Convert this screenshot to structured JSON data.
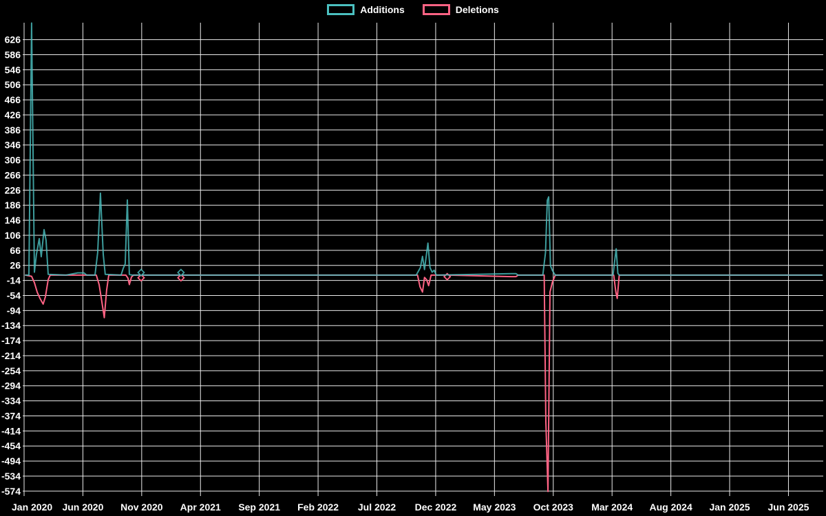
{
  "legend": {
    "position": "top",
    "items": [
      {
        "label": "Additions",
        "swatch": "teal-outline-box"
      },
      {
        "label": "Deletions",
        "swatch": "pink-outline-box"
      }
    ]
  },
  "chart_data": {
    "type": "line",
    "title": "",
    "xlabel": "",
    "ylabel": "",
    "x_unit": "months since Jan 2020",
    "xlim": [
      0,
      67.9
    ],
    "ylim": [
      -578,
      671
    ],
    "grid": true,
    "legend_position": "top",
    "colors": {
      "background": "#000000",
      "grid": "#ededed",
      "text": "#ffffff",
      "additions": "#4bc0c0",
      "deletions": "#ff6384"
    },
    "x_axis": {
      "tick_positions": [
        0,
        5,
        10,
        15,
        20,
        25,
        30,
        35,
        40,
        45,
        50,
        55,
        60,
        65
      ],
      "tick_labels": [
        "Jan 2020",
        "Jun 2020",
        "Nov 2020",
        "Apr 2021",
        "Sep 2021",
        "Feb 2022",
        "Jul 2022",
        "Dec 2022",
        "May 2023",
        "Oct 2023",
        "Mar 2024",
        "Aug 2024",
        "Jan 2025",
        "Jun 2025"
      ]
    },
    "y_axis": {
      "ticks": [
        626,
        586,
        546,
        506,
        466,
        426,
        386,
        346,
        306,
        266,
        226,
        186,
        146,
        106,
        66,
        26,
        -14,
        -54,
        -94,
        -134,
        -174,
        -214,
        -254,
        -294,
        -334,
        -374,
        -414,
        -454,
        -494,
        -534,
        -574
      ],
      "tick_step": 40
    },
    "series": [
      {
        "name": "Additions",
        "color": "#4bc0c0",
        "marker_style": "diamond",
        "points": [
          [
            0.12,
            0
          ],
          [
            0.41,
            0
          ],
          [
            0.64,
            670
          ],
          [
            0.88,
            8
          ],
          [
            1.05,
            55
          ],
          [
            1.29,
            97
          ],
          [
            1.46,
            49
          ],
          [
            1.7,
            121
          ],
          [
            1.87,
            93
          ],
          [
            2.05,
            2
          ],
          [
            3.57,
            0
          ],
          [
            4.56,
            6
          ],
          [
            5.09,
            6
          ],
          [
            5.32,
            0
          ],
          [
            6.03,
            0
          ],
          [
            6.26,
            60
          ],
          [
            6.49,
            218
          ],
          [
            6.73,
            55
          ],
          [
            6.9,
            2
          ],
          [
            8.25,
            0
          ],
          [
            8.43,
            18
          ],
          [
            8.6,
            30
          ],
          [
            8.78,
            200
          ],
          [
            8.95,
            2
          ],
          [
            9.19,
            0
          ],
          [
            9.77,
            0
          ],
          [
            9.95,
            7
          ],
          [
            10.12,
            0
          ],
          [
            13.16,
            0
          ],
          [
            13.34,
            7
          ],
          [
            13.52,
            0
          ],
          [
            33.35,
            0
          ],
          [
            33.7,
            20
          ],
          [
            33.88,
            50
          ],
          [
            34.05,
            15
          ],
          [
            34.34,
            85
          ],
          [
            34.52,
            20
          ],
          [
            34.7,
            8
          ],
          [
            34.87,
            13
          ],
          [
            35.05,
            0
          ],
          [
            41.42,
            4
          ],
          [
            41.83,
            4
          ],
          [
            42.01,
            0
          ],
          [
            44.11,
            0
          ],
          [
            44.34,
            60
          ],
          [
            44.49,
            199
          ],
          [
            44.61,
            208
          ],
          [
            44.76,
            25
          ],
          [
            44.93,
            12
          ],
          [
            45.17,
            0
          ],
          [
            50.08,
            0
          ],
          [
            50.23,
            40
          ],
          [
            50.35,
            70
          ],
          [
            50.49,
            5
          ],
          [
            50.61,
            0
          ],
          [
            67.85,
            0
          ]
        ],
        "markers": [
          [
            9.95,
            7
          ],
          [
            13.34,
            7
          ]
        ]
      },
      {
        "name": "Deletions",
        "color": "#ff6384",
        "marker_style": "diamond",
        "points": [
          [
            0.12,
            0
          ],
          [
            0.64,
            -3
          ],
          [
            0.88,
            -20
          ],
          [
            1.11,
            -45
          ],
          [
            1.35,
            -62
          ],
          [
            1.62,
            -77
          ],
          [
            1.81,
            -58
          ],
          [
            2.05,
            -12
          ],
          [
            2.22,
            0
          ],
          [
            6.14,
            0
          ],
          [
            6.38,
            -25
          ],
          [
            6.61,
            -70
          ],
          [
            6.82,
            -113
          ],
          [
            7.02,
            -40
          ],
          [
            7.2,
            0
          ],
          [
            8.66,
            0
          ],
          [
            8.83,
            -8
          ],
          [
            8.95,
            -25
          ],
          [
            9.13,
            -5
          ],
          [
            9.3,
            0
          ],
          [
            9.77,
            0
          ],
          [
            9.95,
            -7
          ],
          [
            10.12,
            0
          ],
          [
            13.16,
            0
          ],
          [
            13.34,
            -7
          ],
          [
            13.52,
            0
          ],
          [
            33.46,
            0
          ],
          [
            33.67,
            -31
          ],
          [
            33.88,
            -45
          ],
          [
            34.05,
            -6
          ],
          [
            34.23,
            -12
          ],
          [
            34.4,
            -28
          ],
          [
            34.61,
            0
          ],
          [
            35.8,
            0
          ],
          [
            35.98,
            -4
          ],
          [
            36.16,
            0
          ],
          [
            41.42,
            -4
          ],
          [
            41.83,
            -4
          ],
          [
            42.01,
            0
          ],
          [
            44.23,
            0
          ],
          [
            44.37,
            -390
          ],
          [
            44.55,
            -575
          ],
          [
            44.72,
            -45
          ],
          [
            44.93,
            -18
          ],
          [
            45.17,
            0
          ],
          [
            50.14,
            0
          ],
          [
            50.32,
            -45
          ],
          [
            50.44,
            -62
          ],
          [
            50.61,
            0
          ],
          [
            67.85,
            0
          ]
        ],
        "markers": [
          [
            9.95,
            -7
          ],
          [
            13.34,
            -7
          ],
          [
            35.98,
            -4
          ]
        ]
      }
    ]
  }
}
